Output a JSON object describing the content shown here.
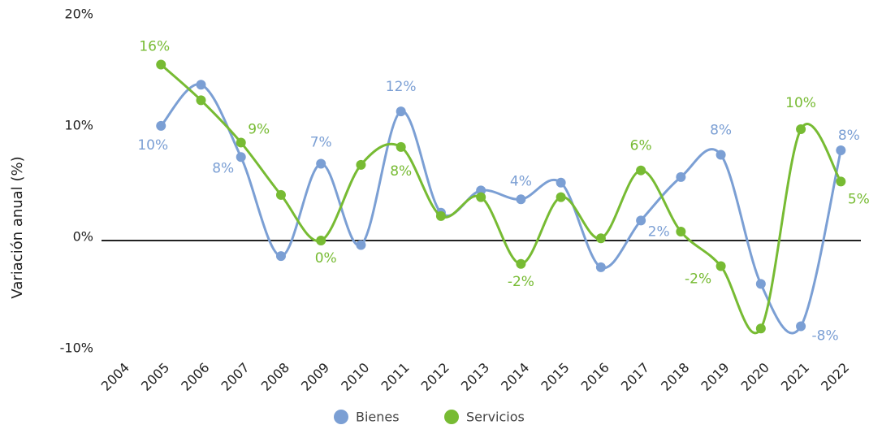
{
  "chart_data": {
    "type": "line",
    "y_label": "Variación anual (%)",
    "categories": [
      "2004",
      "2005",
      "2006",
      "2007",
      "2008",
      "2009",
      "2010",
      "2011",
      "2012",
      "2013",
      "2014",
      "2015",
      "2016",
      "2017",
      "2018",
      "2019",
      "2020",
      "2021",
      "2022"
    ],
    "series": [
      {
        "name": "Bienes",
        "color": "#7b9fd4",
        "values": [
          null,
          10.3,
          14,
          7.5,
          -1.4,
          6.9,
          -0.4,
          11.6,
          2.5,
          4.5,
          3.7,
          5.2,
          -2.4,
          1.8,
          5.7,
          7.7,
          -3.9,
          -7.7,
          8.1
        ],
        "value_labels": [
          null,
          "10%",
          null,
          "8%",
          null,
          "7%",
          null,
          "12%",
          null,
          null,
          "4%",
          null,
          null,
          "2%",
          null,
          "8%",
          null,
          "-8%",
          "8%"
        ]
      },
      {
        "name": "Servicios",
        "color": "#77bb33",
        "values": [
          null,
          15.8,
          12.6,
          8.8,
          4.1,
          0,
          6.8,
          8.4,
          2.2,
          3.9,
          -2.1,
          3.9,
          0.2,
          6.3,
          0.8,
          -2.3,
          -7.9,
          10,
          5.3
        ],
        "value_labels": [
          null,
          "16%",
          null,
          "9%",
          null,
          "0%",
          null,
          "8%",
          null,
          null,
          "-2%",
          null,
          null,
          "6%",
          null,
          "-2%",
          null,
          "10%",
          "5%"
        ]
      }
    ],
    "ylim": [
      -10,
      20
    ],
    "yticks": [
      {
        "value": -10,
        "label": "-10%"
      },
      {
        "value": 0,
        "label": "0%"
      },
      {
        "value": 10,
        "label": "10%"
      },
      {
        "value": 20,
        "label": "20%"
      }
    ],
    "legend": "bottom"
  }
}
